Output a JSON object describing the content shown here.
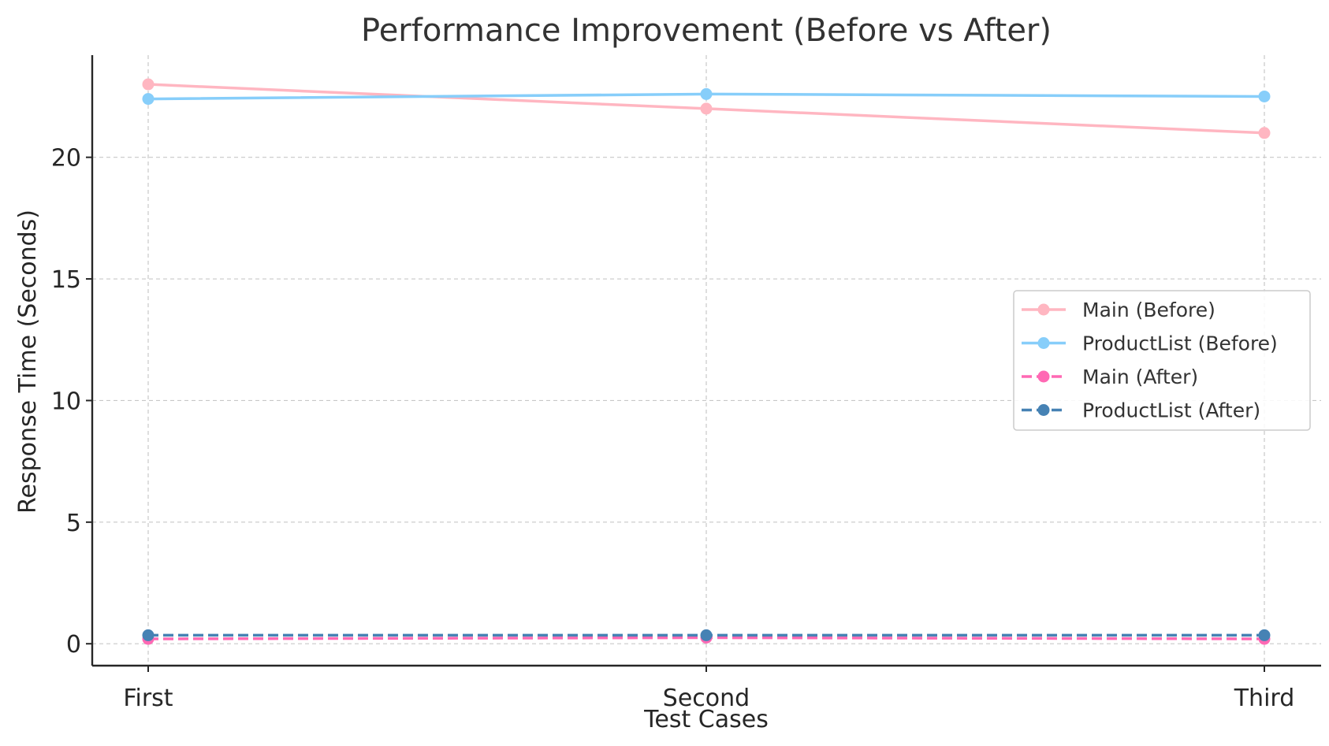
{
  "chart_data": {
    "type": "line",
    "title": "Performance Improvement (Before vs After)",
    "xlabel": "Test Cases",
    "ylabel": "Response Time (Seconds)",
    "categories": [
      "First",
      "Second",
      "Third"
    ],
    "ylim": [
      -0.9,
      24.2
    ],
    "yticks": [
      0,
      5,
      10,
      15,
      20
    ],
    "grid": true,
    "legend_position": "center-right",
    "series": [
      {
        "name": "Main (Before)",
        "values": [
          23.0,
          22.0,
          21.0
        ],
        "color": "#ffb6c1",
        "style": "solid"
      },
      {
        "name": "ProductList (Before)",
        "values": [
          22.4,
          22.6,
          22.5
        ],
        "color": "#87cefa",
        "style": "solid"
      },
      {
        "name": "Main (After)",
        "values": [
          0.2,
          0.25,
          0.2
        ],
        "color": "#ff69b4",
        "style": "dashed"
      },
      {
        "name": "ProductList (After)",
        "values": [
          0.35,
          0.35,
          0.35
        ],
        "color": "#4682b4",
        "style": "dashed"
      }
    ]
  }
}
